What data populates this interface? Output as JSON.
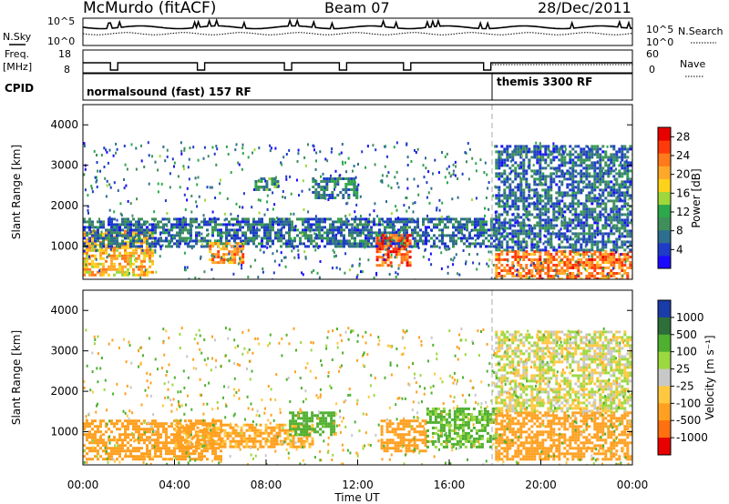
{
  "header": {
    "station": "McMurdo (fitACF)",
    "beam": "Beam 07",
    "date": "28/Dec/2011"
  },
  "strip_labels": {
    "nsky": "N.Sky",
    "nsearch": "N.Search",
    "freq_line1": "Freq.",
    "freq_line2": "[MHz]",
    "nave": "Nave",
    "cpid": "CPID",
    "nsky_ticks": [
      "10^5",
      "10^0"
    ],
    "nsearch_ticks": [
      "10^5",
      "10^0"
    ],
    "freq_ticks": [
      "18",
      "8"
    ],
    "nave_ticks": [
      "60",
      "0"
    ]
  },
  "cpid_segments": [
    {
      "label": "normalsound (fast) 157 RF",
      "start_h": 0,
      "end_h": 18
    },
    {
      "label": "themis 3300 RF",
      "start_h": 18,
      "end_h": 24
    }
  ],
  "colors": {
    "power": [
      "#1a0aff",
      "#1e3cc8",
      "#2e6e8e",
      "#3f8f5a",
      "#2da84a",
      "#9fd83a",
      "#ffd21a",
      "#ffa82a",
      "#ff7a1a",
      "#ff3a0a",
      "#e80000"
    ],
    "velocity": [
      "#1a3ca8",
      "#2d6e3a",
      "#4fb030",
      "#9cd840",
      "#c8c8c8",
      "#ffc840",
      "#ffa020",
      "#ff7010",
      "#e80000"
    ]
  },
  "chart_data": [
    {
      "type": "heatmap",
      "panel": "power",
      "xlabel": "",
      "ylabel": "Slant Range [km]",
      "xlim_hours": [
        0,
        24
      ],
      "ylim_km": [
        180,
        4500
      ],
      "yticks": [
        "1000",
        "2000",
        "3000",
        "4000"
      ],
      "colorbar": {
        "label": "Power [dB]",
        "ticks": [
          "4",
          "8",
          "12",
          "16",
          "20",
          "24",
          "28"
        ],
        "range": [
          0,
          30
        ]
      },
      "echo_regions": [
        {
          "t0": 0.0,
          "t1": 3.0,
          "r0": 300,
          "r1": 1400,
          "level": 20
        },
        {
          "t0": 0.0,
          "t1": 18.0,
          "r0": 1000,
          "r1": 1700,
          "level": 6
        },
        {
          "t0": 5.5,
          "t1": 7.0,
          "r0": 600,
          "r1": 1100,
          "level": 22
        },
        {
          "t0": 7.5,
          "t1": 8.5,
          "r0": 2400,
          "r1": 2700,
          "level": 10
        },
        {
          "t0": 10.0,
          "t1": 12.0,
          "r0": 2200,
          "r1": 2700,
          "level": 8
        },
        {
          "t0": 12.8,
          "t1": 14.3,
          "r0": 500,
          "r1": 1300,
          "level": 26
        },
        {
          "t0": 18.0,
          "t1": 24.0,
          "r0": 200,
          "r1": 900,
          "level": 24
        },
        {
          "t0": 18.0,
          "t1": 24.0,
          "r0": 900,
          "r1": 3500,
          "level": 6
        }
      ]
    },
    {
      "type": "heatmap",
      "panel": "velocity",
      "xlabel": "Time UT",
      "ylabel": "Slant Range [km]",
      "xlim_hours": [
        0,
        24
      ],
      "ylim_km": [
        180,
        4500
      ],
      "yticks": [
        "1000",
        "2000",
        "3000",
        "4000"
      ],
      "xticks": [
        "00:00",
        "04:00",
        "08:00",
        "12:00",
        "16:00",
        "20:00",
        "00:00"
      ],
      "colorbar": {
        "label": "Velocity [m s⁻¹]",
        "ticks": [
          "1000",
          "500",
          "100",
          "25",
          "-25",
          "-100",
          "-500",
          "-1000"
        ]
      },
      "echo_regions": [
        {
          "t0": 0.0,
          "t1": 6.0,
          "r0": 300,
          "r1": 1300,
          "level": -300
        },
        {
          "t0": 4.0,
          "t1": 10.0,
          "r0": 600,
          "r1": 1200,
          "level": -150
        },
        {
          "t0": 9.0,
          "t1": 11.0,
          "r0": 900,
          "r1": 1500,
          "level": 200
        },
        {
          "t0": 13.0,
          "t1": 15.0,
          "r0": 500,
          "r1": 1300,
          "level": -400
        },
        {
          "t0": 15.0,
          "t1": 18.0,
          "r0": 600,
          "r1": 1600,
          "level": 150
        },
        {
          "t0": 18.0,
          "t1": 24.0,
          "r0": 300,
          "r1": 1500,
          "level": -350
        },
        {
          "t0": 18.0,
          "t1": 24.0,
          "r0": 1500,
          "r1": 3500,
          "level": 0
        }
      ]
    }
  ]
}
